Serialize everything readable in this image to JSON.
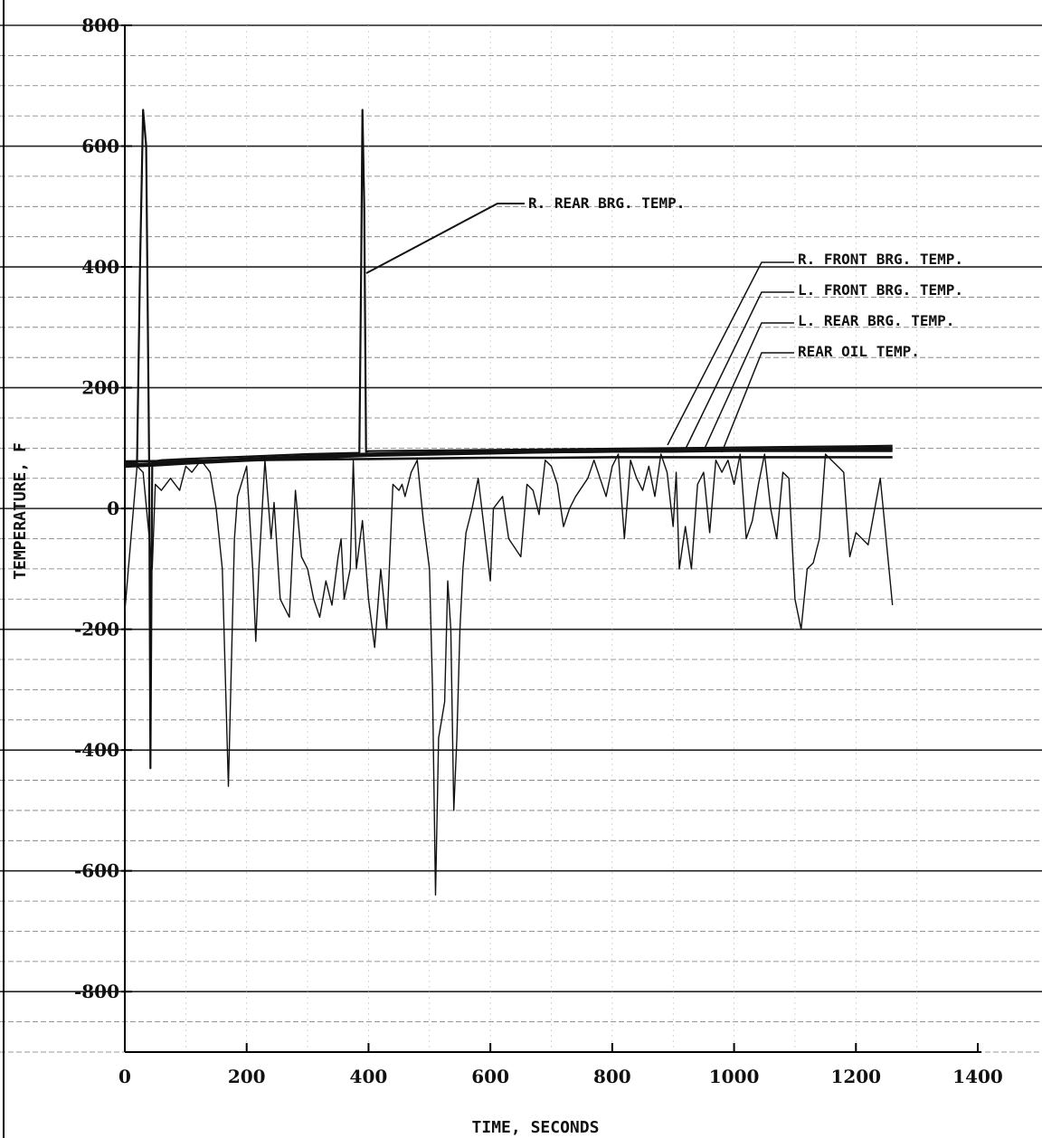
{
  "chart_data": {
    "type": "line",
    "xlabel": "TIME, SECONDS",
    "ylabel": "TEMPERATURE, F",
    "xlim": [
      0,
      1400
    ],
    "ylim": [
      -900,
      800
    ],
    "x_ticks": [
      0,
      200,
      400,
      600,
      800,
      1000,
      1200,
      1400
    ],
    "y_ticks": [
      800,
      600,
      400,
      200,
      0,
      -200,
      -400,
      -600,
      -800
    ],
    "y_tick_labels": [
      "800",
      "600",
      "400",
      "200",
      "0",
      "-200",
      "-400",
      "-600",
      "-800"
    ],
    "grid": true,
    "annotations": [
      "R. REAR BRG. TEMP.",
      "R. FRONT BRG. TEMP.",
      "L. FRONT BRG. TEMP.",
      "L. REAR BRG. TEMP.",
      "REAR OIL TEMP."
    ],
    "series": [
      {
        "name": "R. REAR BRG. TEMP.",
        "x": [
          0,
          10,
          20,
          25,
          30,
          35,
          40,
          42,
          45,
          50,
          60,
          100,
          200,
          300,
          380,
          385,
          388,
          390,
          393,
          396,
          400,
          500,
          600,
          700,
          800,
          900,
          1000,
          1100,
          1200,
          1260
        ],
        "y": [
          75,
          75,
          75,
          400,
          660,
          600,
          75,
          -430,
          76,
          78,
          80,
          82,
          86,
          90,
          92,
          92,
          400,
          660,
          500,
          94,
          95,
          96,
          97,
          98,
          99,
          100,
          101,
          102,
          103,
          104
        ]
      },
      {
        "name": "R. FRONT BRG. TEMP.",
        "x": [
          0,
          50,
          100,
          200,
          300,
          400,
          500,
          600,
          700,
          800,
          900,
          1000,
          1100,
          1200,
          1260
        ],
        "y": [
          70,
          72,
          75,
          80,
          84,
          88,
          90,
          92,
          94,
          95,
          96,
          97,
          98,
          99,
          100
        ]
      },
      {
        "name": "L. FRONT BRG. TEMP.",
        "x": [
          0,
          50,
          100,
          200,
          300,
          400,
          500,
          600,
          700,
          800,
          900,
          1000,
          1100,
          1200,
          1260
        ],
        "y": [
          72,
          74,
          77,
          82,
          86,
          90,
          92,
          93,
          94,
          95,
          95,
          96,
          96,
          96,
          96
        ]
      },
      {
        "name": "L. REAR BRG. TEMP.",
        "x": [
          0,
          100,
          200,
          300,
          400,
          500,
          600,
          700,
          800,
          900,
          1000,
          1100,
          1200,
          1260
        ],
        "y": [
          78,
          79,
          80,
          81,
          82,
          83,
          84,
          84,
          85,
          85,
          85,
          85,
          85,
          85
        ]
      },
      {
        "name": "REAR OIL TEMP.",
        "x": [
          0,
          20,
          30,
          45,
          50,
          60,
          75,
          90,
          100,
          110,
          125,
          140,
          150,
          160,
          170,
          180,
          185,
          200,
          210,
          215,
          220,
          230,
          240,
          245,
          255,
          270,
          280,
          290,
          300,
          310,
          320,
          330,
          340,
          350,
          355,
          360,
          370,
          375,
          380,
          390,
          400,
          410,
          420,
          430,
          440,
          450,
          455,
          460,
          470,
          480,
          490,
          500,
          505,
          510,
          515,
          520,
          525,
          530,
          535,
          540,
          545,
          550,
          555,
          560,
          565,
          570,
          580,
          600,
          605,
          620,
          630,
          650,
          660,
          670,
          680,
          690,
          700,
          710,
          720,
          730,
          740,
          760,
          770,
          790,
          800,
          810,
          820,
          830,
          840,
          850,
          860,
          870,
          880,
          890,
          900,
          905,
          910,
          920,
          930,
          940,
          950,
          960,
          970,
          980,
          990,
          1000,
          1010,
          1020,
          1030,
          1040,
          1050,
          1060,
          1070,
          1080,
          1090,
          1100,
          1110,
          1120,
          1130,
          1140,
          1150,
          1160,
          1170,
          1180,
          1190,
          1200,
          1220,
          1240,
          1260
        ],
        "y": [
          -170,
          70,
          60,
          -100,
          40,
          30,
          50,
          30,
          70,
          60,
          80,
          60,
          0,
          -100,
          -460,
          -50,
          20,
          70,
          -100,
          -220,
          -100,
          80,
          -50,
          10,
          -150,
          -180,
          30,
          -80,
          -100,
          -150,
          -180,
          -120,
          -160,
          -80,
          -50,
          -150,
          -100,
          80,
          -100,
          -20,
          -150,
          -230,
          -100,
          -200,
          40,
          30,
          40,
          20,
          60,
          80,
          -20,
          -100,
          -300,
          -640,
          -380,
          -350,
          -320,
          -120,
          -200,
          -500,
          -380,
          -200,
          -100,
          -40,
          -20,
          0,
          50,
          -120,
          0,
          20,
          -50,
          -80,
          40,
          30,
          -10,
          80,
          70,
          40,
          -30,
          0,
          20,
          50,
          80,
          20,
          70,
          90,
          -50,
          80,
          50,
          30,
          70,
          20,
          90,
          60,
          -30,
          60,
          -100,
          -30,
          -100,
          40,
          60,
          -40,
          80,
          60,
          80,
          40,
          90,
          -50,
          -20,
          40,
          90,
          0,
          -50,
          60,
          50,
          -150,
          -200,
          -100,
          -90,
          -50,
          90,
          80,
          70,
          60,
          -80,
          -40,
          -60,
          50,
          -160
        ]
      }
    ]
  }
}
